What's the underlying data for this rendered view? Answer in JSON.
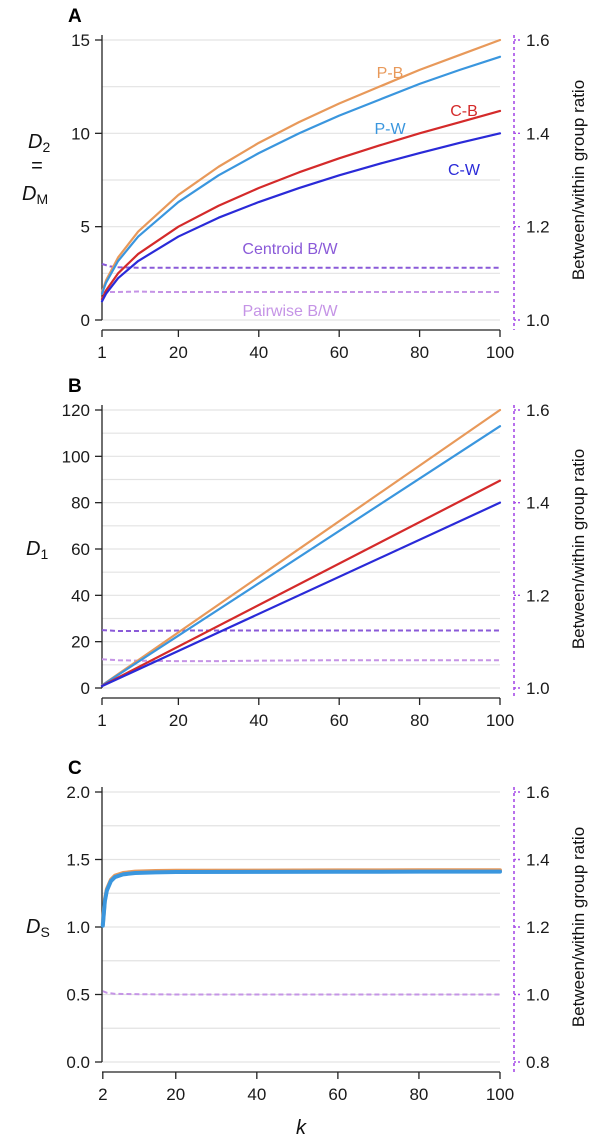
{
  "colors": {
    "P-B": "#e8995a",
    "P-W": "#3a96de",
    "C-B": "#d42a2a",
    "C-W": "#2a2ad8",
    "centroid": "#8a5ad8",
    "pairwise": "#c594e6",
    "grid": "#e3e3e3",
    "ratio_axis": "#a64de8"
  },
  "chart_data": [
    {
      "type": "line",
      "panel_label": "A",
      "ylabel_main": "D",
      "ylabel_sub": "2",
      "ylabel_eq": "=",
      "ylabel2_main": "D",
      "ylabel2_sub": "M",
      "xlabel": "",
      "y2label": "Between/within group ratio",
      "xlim": [
        1,
        100
      ],
      "ylim": [
        0,
        15
      ],
      "y2lim": [
        1.0,
        1.6
      ],
      "xticks": [
        "1",
        "20",
        "40",
        "60",
        "80",
        "100"
      ],
      "yticks": [
        "0",
        "5",
        "10",
        "15"
      ],
      "y2ticks": [
        "1.0",
        "1.2",
        "1.4",
        "1.6"
      ],
      "grid": true,
      "series": [
        {
          "name": "P-B",
          "x": [
            1,
            2,
            5,
            10,
            20,
            30,
            40,
            50,
            60,
            70,
            80,
            90,
            100
          ],
          "y": [
            1.5,
            2.12,
            3.35,
            4.74,
            6.7,
            8.21,
            9.49,
            10.6,
            11.6,
            12.5,
            13.4,
            14.2,
            15.0
          ]
        },
        {
          "name": "P-W",
          "x": [
            1,
            2,
            5,
            10,
            20,
            30,
            40,
            50,
            60,
            70,
            80,
            90,
            100
          ],
          "y": [
            1.41,
            2.0,
            3.16,
            4.47,
            6.32,
            7.75,
            8.94,
            10.0,
            10.95,
            11.8,
            12.65,
            13.4,
            14.1
          ]
        },
        {
          "name": "C-B",
          "x": [
            1,
            2,
            5,
            10,
            20,
            30,
            40,
            50,
            60,
            70,
            80,
            90,
            100
          ],
          "y": [
            1.12,
            1.58,
            2.5,
            3.54,
            5.0,
            6.12,
            7.07,
            7.91,
            8.66,
            9.35,
            10.0,
            10.6,
            11.2
          ]
        },
        {
          "name": "C-W",
          "x": [
            1,
            2,
            5,
            10,
            20,
            30,
            40,
            50,
            60,
            70,
            80,
            90,
            100
          ],
          "y": [
            1.0,
            1.41,
            2.24,
            3.16,
            4.47,
            5.48,
            6.32,
            7.07,
            7.75,
            8.37,
            8.94,
            9.49,
            10.0
          ]
        }
      ],
      "ratio_series": [
        {
          "name": "Centroid B/W",
          "x": [
            1,
            3,
            5,
            10,
            20,
            40,
            60,
            80,
            100
          ],
          "y": [
            1.12,
            1.115,
            1.113,
            1.112,
            1.112,
            1.112,
            1.112,
            1.112,
            1.112
          ]
        },
        {
          "name": "Pairwise B/W",
          "x": [
            1,
            5,
            10,
            15,
            20,
            30,
            40,
            60,
            80,
            100
          ],
          "y": [
            1.06,
            1.06,
            1.061,
            1.06,
            1.06,
            1.06,
            1.06,
            1.06,
            1.06,
            1.06
          ]
        }
      ],
      "annotations": [
        {
          "text": "P-B",
          "series": "P-B"
        },
        {
          "text": "P-W",
          "series": "P-W"
        },
        {
          "text": "C-B",
          "series": "C-B"
        },
        {
          "text": "C-W",
          "series": "C-W"
        },
        {
          "text": "Centroid B/W",
          "series": "centroid"
        },
        {
          "text": "Pairwise B/W",
          "series": "pairwise"
        }
      ]
    },
    {
      "type": "line",
      "panel_label": "B",
      "ylabel_main": "D",
      "ylabel_sub": "1",
      "xlabel": "",
      "y2label": "Between/within group ratio",
      "xlim": [
        1,
        100
      ],
      "ylim": [
        0,
        120
      ],
      "y2lim": [
        1.0,
        1.6
      ],
      "xticks": [
        "1",
        "20",
        "40",
        "60",
        "80",
        "100"
      ],
      "yticks": [
        "0",
        "20",
        "40",
        "60",
        "80",
        "100",
        "120"
      ],
      "y2ticks": [
        "1.0",
        "1.2",
        "1.4",
        "1.6"
      ],
      "grid": true,
      "series": [
        {
          "name": "P-B",
          "x": [
            1,
            100
          ],
          "y": [
            1.2,
            120
          ]
        },
        {
          "name": "P-W",
          "x": [
            1,
            100
          ],
          "y": [
            1.13,
            113
          ]
        },
        {
          "name": "C-B",
          "x": [
            1,
            100
          ],
          "y": [
            0.9,
            89.5
          ]
        },
        {
          "name": "C-W",
          "x": [
            1,
            100
          ],
          "y": [
            0.8,
            80
          ]
        }
      ],
      "ratio_series": [
        {
          "name": "Centroid B/W",
          "x": [
            1,
            5,
            10,
            20,
            40,
            60,
            80,
            100
          ],
          "y": [
            1.125,
            1.123,
            1.123,
            1.124,
            1.124,
            1.124,
            1.124,
            1.124
          ]
        },
        {
          "name": "Pairwise B/W",
          "x": [
            1,
            5,
            10,
            20,
            30,
            40,
            60,
            80,
            100
          ],
          "y": [
            1.062,
            1.06,
            1.059,
            1.058,
            1.058,
            1.059,
            1.06,
            1.06,
            1.06
          ]
        }
      ]
    },
    {
      "type": "line",
      "panel_label": "C",
      "ylabel_main": "D",
      "ylabel_sub": "S",
      "xlabel": "k",
      "y2label": "Between/within group ratio",
      "xlim": [
        1.8,
        100
      ],
      "ylim": [
        0,
        2
      ],
      "y2lim": [
        0.8,
        1.6
      ],
      "xticks": [
        "2",
        "20",
        "40",
        "60",
        "80",
        "100"
      ],
      "yticks": [
        "0.0",
        "0.5",
        "1.0",
        "1.5",
        "2.0"
      ],
      "y2ticks": [
        "0.8",
        "1.0",
        "1.2",
        "1.4",
        "1.6"
      ],
      "grid": true,
      "series": [
        {
          "name": "P-B",
          "x": [
            2,
            2.5,
            3,
            4,
            5,
            7,
            10,
            15,
            20,
            40,
            60,
            80,
            100
          ],
          "y": [
            1.02,
            1.2,
            1.28,
            1.35,
            1.38,
            1.4,
            1.41,
            1.415,
            1.417,
            1.418,
            1.419,
            1.42,
            1.42
          ]
        },
        {
          "name": "P-W",
          "x": [
            2,
            2.5,
            3,
            4,
            5,
            7,
            10,
            15,
            20,
            40,
            60,
            80,
            100
          ],
          "y": [
            1.01,
            1.19,
            1.27,
            1.34,
            1.37,
            1.39,
            1.4,
            1.405,
            1.407,
            1.408,
            1.409,
            1.41,
            1.41
          ]
        }
      ],
      "ratio_series": [
        {
          "name": "Pairwise B/W",
          "x": [
            2,
            3,
            5,
            10,
            20,
            40,
            60,
            80,
            100
          ],
          "y": [
            1.01,
            1.005,
            1.002,
            1.001,
            1.0,
            1.0,
            1.0,
            1.0,
            1.0
          ]
        }
      ]
    }
  ]
}
